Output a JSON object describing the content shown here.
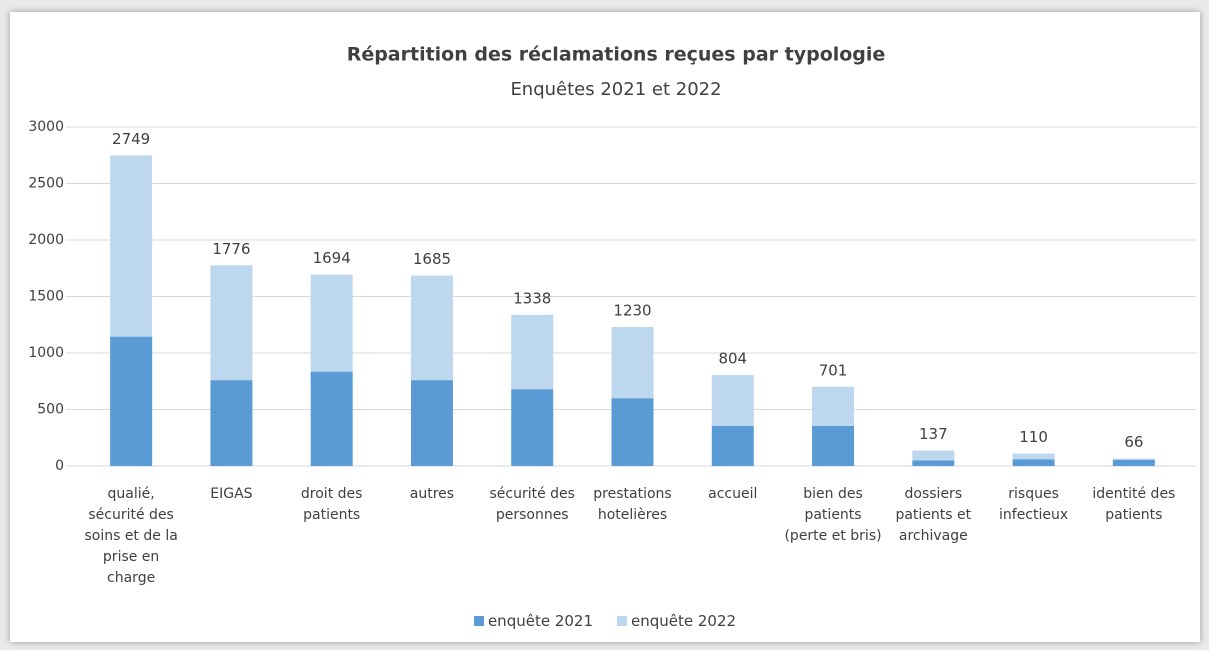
{
  "chart_data": {
    "type": "stacked_bar",
    "title": "Répartition des réclamations reçues par typologie",
    "subtitle": "Enquêtes 2021 et 2022",
    "categories": [
      "qualié, sécurité des soins et de la prise en charge",
      "EIGAS",
      "droit des patients",
      "autres",
      "sécurité des personnes",
      "prestations hotelières",
      "accueil",
      "bien des patients (perte et bris)",
      "dossiers patients et archivage",
      "risques infectieux",
      "identité des patients"
    ],
    "series": [
      {
        "name": "enquête 2021",
        "color": "#5b9bd5",
        "values": [
          1145,
          760,
          835,
          760,
          680,
          600,
          355,
          355,
          50,
          60,
          55
        ]
      },
      {
        "name": "enquête 2022",
        "color": "#bdd7ee",
        "values": [
          1604,
          1016,
          859,
          925,
          658,
          630,
          449,
          346,
          87,
          50,
          11
        ]
      }
    ],
    "totals": [
      2749,
      1776,
      1694,
      1685,
      1338,
      1230,
      804,
      701,
      137,
      110,
      66
    ],
    "ylim": [
      0,
      3000
    ],
    "yticks": [
      0,
      500,
      1000,
      1500,
      2000,
      2500,
      3000
    ],
    "grid": true,
    "legend": "bottom"
  }
}
